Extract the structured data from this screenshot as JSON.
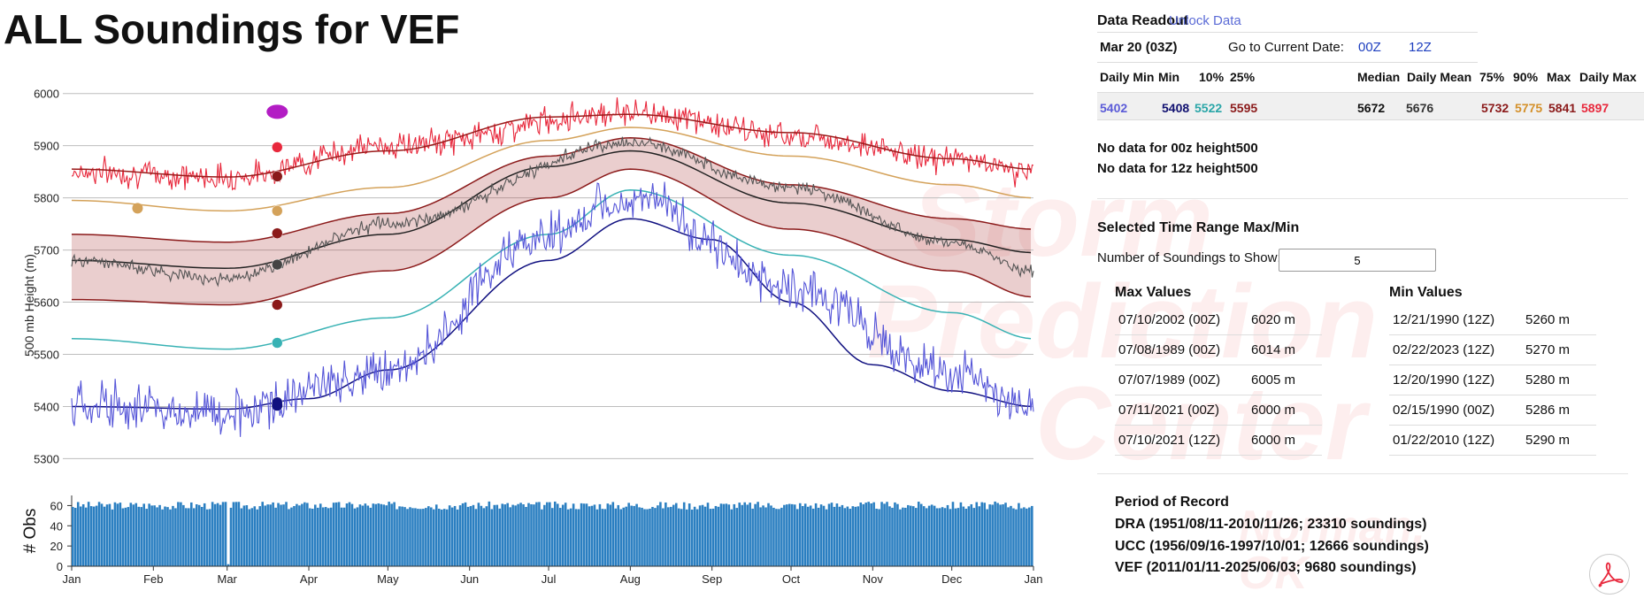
{
  "page": {
    "title": "ALL Soundings for VEF"
  },
  "watermark": {
    "lines": [
      "Storm",
      "Prediction",
      "Center"
    ],
    "sub": "Norman, OK"
  },
  "chart_data": [
    {
      "type": "line",
      "title": "ALL Soundings for VEF",
      "ylabel": "500 mb Height (m)",
      "ylim": [
        5260,
        6030
      ],
      "yticks": [
        5300,
        5400,
        5500,
        5600,
        5700,
        5800,
        5900,
        6000
      ],
      "xlabel": "",
      "xlim_days": [
        0,
        365
      ],
      "xticks": [
        {
          "label": "Jan 01",
          "day": 0
        },
        {
          "label": "Feb 01",
          "day": 31
        },
        {
          "label": "Mar 01",
          "day": 59
        },
        {
          "label": "Apr 01",
          "day": 90
        },
        {
          "label": "May 01",
          "day": 120
        },
        {
          "label": "Jun 01",
          "day": 151
        },
        {
          "label": "Jul 01",
          "day": 181
        },
        {
          "label": "Aug 01",
          "day": 212
        },
        {
          "label": "Sep 01",
          "day": 243
        },
        {
          "label": "Oct 01",
          "day": 273
        },
        {
          "label": "Nov 01",
          "day": 304
        },
        {
          "label": "Dec 01",
          "day": 334
        },
        {
          "label": "Jan 01",
          "day": 365
        }
      ],
      "series": [
        {
          "name": "Daily Max",
          "color": "#e8283c",
          "kind": "noisy",
          "anchors": [
            [
              0,
              5850
            ],
            [
              59,
              5840
            ],
            [
              120,
              5900
            ],
            [
              212,
              5965
            ],
            [
              273,
              5920
            ],
            [
              334,
              5875
            ],
            [
              365,
              5850
            ]
          ],
          "noise": 25
        },
        {
          "name": "Max",
          "color": "#9b1a1a",
          "kind": "smooth",
          "anchors": [
            [
              0,
              5855
            ],
            [
              59,
              5840
            ],
            [
              120,
              5890
            ],
            [
              181,
              5955
            ],
            [
              212,
              5960
            ],
            [
              273,
              5925
            ],
            [
              334,
              5875
            ],
            [
              365,
              5855
            ]
          ]
        },
        {
          "name": "90%",
          "color": "#d4a25a",
          "kind": "smooth",
          "anchors": [
            [
              0,
              5795
            ],
            [
              59,
              5775
            ],
            [
              120,
              5820
            ],
            [
              181,
              5910
            ],
            [
              212,
              5935
            ],
            [
              273,
              5880
            ],
            [
              334,
              5825
            ],
            [
              365,
              5800
            ]
          ]
        },
        {
          "name": "75%",
          "color": "#8b1a1a",
          "kind": "smooth",
          "anchors": [
            [
              0,
              5730
            ],
            [
              59,
              5715
            ],
            [
              120,
              5770
            ],
            [
              181,
              5880
            ],
            [
              212,
              5915
            ],
            [
              273,
              5825
            ],
            [
              334,
              5760
            ],
            [
              365,
              5740
            ]
          ]
        },
        {
          "name": "Median",
          "color": "#222222",
          "kind": "smooth",
          "anchors": [
            [
              0,
              5680
            ],
            [
              59,
              5665
            ],
            [
              120,
              5730
            ],
            [
              181,
              5860
            ],
            [
              212,
              5890
            ],
            [
              273,
              5790
            ],
            [
              334,
              5720
            ],
            [
              365,
              5695
            ]
          ]
        },
        {
          "name": "Daily Mean",
          "color": "#555555",
          "kind": "noisy",
          "anchors": [
            [
              0,
              5680
            ],
            [
              59,
              5645
            ],
            [
              120,
              5750
            ],
            [
              212,
              5905
            ],
            [
              273,
              5820
            ],
            [
              334,
              5715
            ],
            [
              365,
              5660
            ]
          ],
          "noise": 12
        },
        {
          "name": "25%",
          "color": "#8b1a1a",
          "kind": "smooth",
          "anchors": [
            [
              0,
              5605
            ],
            [
              59,
              5595
            ],
            [
              120,
              5660
            ],
            [
              181,
              5800
            ],
            [
              212,
              5855
            ],
            [
              273,
              5740
            ],
            [
              334,
              5660
            ],
            [
              365,
              5610
            ]
          ]
        },
        {
          "name": "10%",
          "color": "#38b2b4",
          "kind": "smooth",
          "anchors": [
            [
              0,
              5530
            ],
            [
              59,
              5510
            ],
            [
              120,
              5570
            ],
            [
              181,
              5730
            ],
            [
              212,
              5815
            ],
            [
              273,
              5690
            ],
            [
              334,
              5580
            ],
            [
              365,
              5530
            ]
          ]
        },
        {
          "name": "Min",
          "color": "#101080",
          "kind": "smooth",
          "anchors": [
            [
              0,
              5400
            ],
            [
              59,
              5395
            ],
            [
              90,
              5415
            ],
            [
              120,
              5470
            ],
            [
              181,
              5680
            ],
            [
              212,
              5760
            ],
            [
              243,
              5720
            ],
            [
              273,
              5600
            ],
            [
              304,
              5480
            ],
            [
              334,
              5430
            ],
            [
              365,
              5400
            ]
          ]
        },
        {
          "name": "Daily Min",
          "color": "#5555d8",
          "kind": "noisy",
          "anchors": [
            [
              0,
              5400
            ],
            [
              59,
              5390
            ],
            [
              120,
              5470
            ],
            [
              181,
              5730
            ],
            [
              212,
              5800
            ],
            [
              273,
              5630
            ],
            [
              334,
              5460
            ],
            [
              365,
              5390
            ]
          ],
          "noise": 42
        }
      ],
      "band": {
        "from": "25%",
        "to": "75%",
        "color": "rgba(170,60,60,0.25)"
      },
      "current_day": 78,
      "current_markers": [
        {
          "name": "Daily Max",
          "value": 5897,
          "color": "#e8283c"
        },
        {
          "name": "Max",
          "value": 5841,
          "color": "#8b1a1a"
        },
        {
          "name": "90%",
          "value": 5775,
          "color": "#d4a25a"
        },
        {
          "name": "75%",
          "value": 5732,
          "color": "#8b1a1a"
        },
        {
          "name": "Median",
          "value": 5672,
          "color": "#444444"
        },
        {
          "name": "25%",
          "value": 5595,
          "color": "#8b1a1a"
        },
        {
          "name": "10%",
          "value": 5522,
          "color": "#38b2b4"
        },
        {
          "name": "Min",
          "value": 5408,
          "color": "#101080"
        }
      ],
      "extra_markers": [
        {
          "name": "Current",
          "day": 78,
          "value": 5965,
          "color": "#b31dc4",
          "shape": "oval"
        },
        {
          "name": "90%",
          "day": 25,
          "value": 5780,
          "color": "#d4a25a",
          "shape": "dot"
        }
      ]
    },
    {
      "type": "bar",
      "ylabel": "# Obs",
      "ylim": [
        0,
        70
      ],
      "yticks": [
        0,
        20,
        40,
        60
      ],
      "xticks": [
        "Jan",
        "Feb",
        "Mar",
        "Apr",
        "May",
        "Jun",
        "Jul",
        "Aug",
        "Sep",
        "Oct",
        "Nov",
        "Dec",
        "Jan"
      ],
      "xtick_days": [
        0,
        31,
        59,
        90,
        120,
        151,
        181,
        212,
        243,
        273,
        304,
        334,
        365
      ],
      "typical_count": 60,
      "gaps": [
        {
          "day": 59,
          "value": 2
        }
      ],
      "color": "#2b7fc1"
    }
  ],
  "readout": {
    "title": "Data Readout",
    "unlock": "Unlock Data",
    "current_date": "Mar 20 (03Z)",
    "goto_label": "Go to Current Date:",
    "goto_00": "00Z",
    "goto_12": "12Z",
    "headers": [
      "Daily Min",
      "Min",
      "10%",
      "25%",
      "Median",
      "Daily Mean",
      "75%",
      "90%",
      "Max",
      "Daily Max"
    ],
    "values": [
      {
        "v": "5402",
        "color": "#5b5bd8"
      },
      {
        "v": "5408",
        "color": "#101070"
      },
      {
        "v": "5522",
        "color": "#2aa6a8"
      },
      {
        "v": "5595",
        "color": "#8b1a1a"
      },
      {
        "v": "5672",
        "color": "#111111"
      },
      {
        "v": "5676",
        "color": "#333333"
      },
      {
        "v": "5732",
        "color": "#8b1a1a"
      },
      {
        "v": "5775",
        "color": "#d4902a"
      },
      {
        "v": "5841",
        "color": "#8b1a1a"
      },
      {
        "v": "5897",
        "color": "#e8283c"
      }
    ],
    "nodata_00": "No data for 00z height500",
    "nodata_12": "No data for 12z height500"
  },
  "range": {
    "title": "Selected Time Range Max/Min",
    "num_label": "Number of Soundings to Show:",
    "num_value": "5",
    "max_title": "Max Values",
    "min_title": "Min Values",
    "max_rows": [
      {
        "date": "07/10/2002 (00Z)",
        "val": "6020 m"
      },
      {
        "date": "07/08/1989 (00Z)",
        "val": "6014 m"
      },
      {
        "date": "07/07/1989 (00Z)",
        "val": "6005 m"
      },
      {
        "date": "07/11/2021 (00Z)",
        "val": "6000 m"
      },
      {
        "date": "07/10/2021 (12Z)",
        "val": "6000 m"
      }
    ],
    "min_rows": [
      {
        "date": "12/21/1990 (12Z)",
        "val": "5260 m"
      },
      {
        "date": "02/22/2023 (12Z)",
        "val": "5270 m"
      },
      {
        "date": "12/20/1990 (12Z)",
        "val": "5280 m"
      },
      {
        "date": "02/15/1990 (00Z)",
        "val": "5286 m"
      },
      {
        "date": "01/22/2010 (12Z)",
        "val": "5290 m"
      }
    ]
  },
  "por": {
    "title": "Period of Record",
    "lines": [
      "DRA (1951/08/11-2010/11/26; 23310 soundings)",
      "UCC (1956/09/16-1997/10/01; 12666 soundings)",
      "VEF (2011/01/11-2025/06/03; 9680 soundings)"
    ]
  }
}
